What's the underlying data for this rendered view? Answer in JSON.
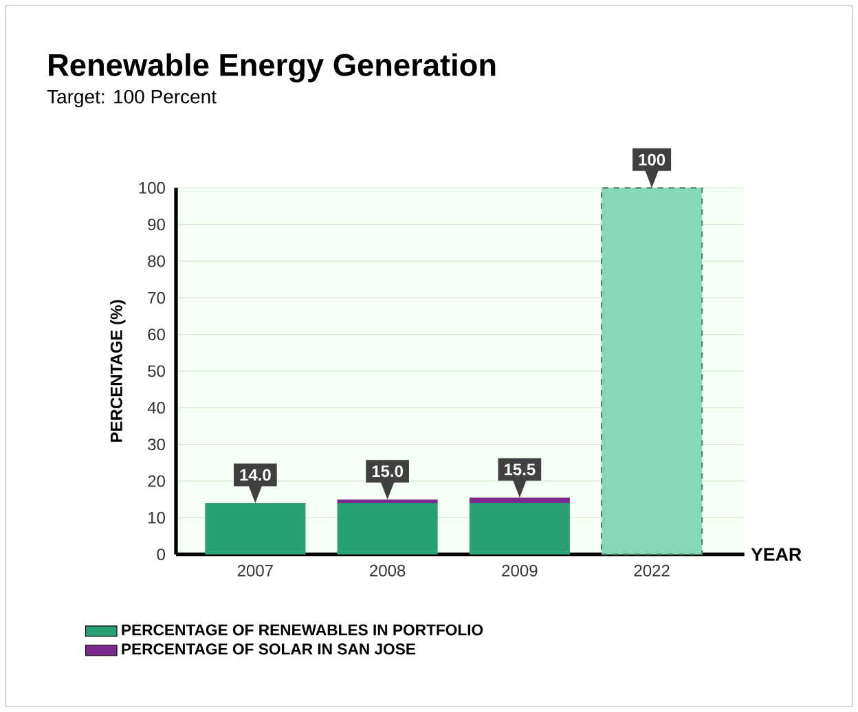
{
  "chart_data": {
    "type": "bar",
    "title": "Renewable Energy Generation",
    "subtitle": "Target: 100 Percent",
    "xlabel": "YEAR",
    "ylabel": "PERCENTAGE (%)",
    "categories": [
      "2007",
      "2008",
      "2009",
      "2022"
    ],
    "stacked": true,
    "series": [
      {
        "name": "PERCENTAGE OF RENEWABLES IN PORTFOLIO",
        "color": "#2aa173",
        "values": [
          14,
          14,
          14,
          null
        ]
      },
      {
        "name": "PERCENTAGE OF SOLAR IN SAN JOSE",
        "color": "#7a2a8c",
        "values": [
          null,
          1,
          1.5,
          null
        ]
      },
      {
        "color": "#86d8b8",
        "line_style": "dashed",
        "values": [
          null,
          null,
          null,
          100
        ]
      }
    ],
    "totals": [
      "14.0",
      "15.0",
      "15.5",
      "100"
    ],
    "ylim": [
      0,
      100
    ],
    "yticks": [
      0,
      10,
      20,
      30,
      40,
      50,
      60,
      70,
      80,
      90,
      100
    ],
    "grid": "y",
    "legend": "bottom left"
  }
}
